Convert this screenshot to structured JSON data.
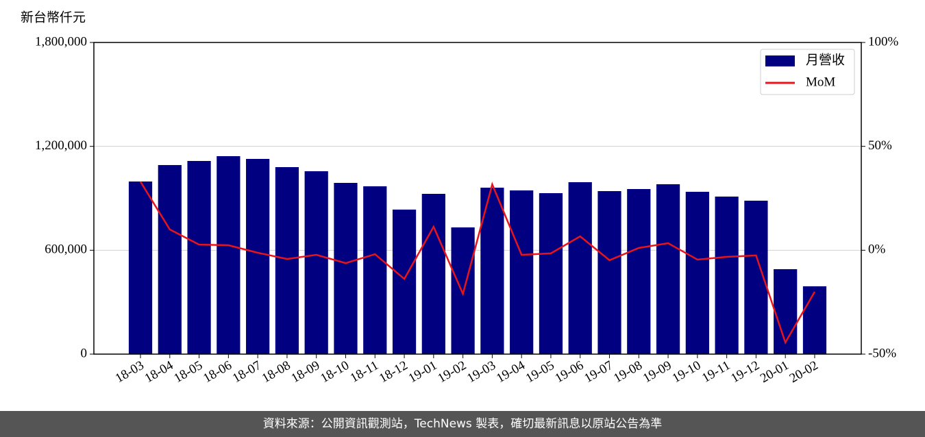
{
  "chart_data": {
    "type": "bar",
    "y_label": "新台幣仟元",
    "categories": [
      "18-03",
      "18-04",
      "18-05",
      "18-06",
      "18-07",
      "18-08",
      "18-09",
      "18-10",
      "18-11",
      "18-12",
      "19-01",
      "19-02",
      "19-03",
      "19-04",
      "19-05",
      "19-06",
      "19-07",
      "19-08",
      "19-09",
      "19-10",
      "19-11",
      "19-12",
      "20-01",
      "20-02"
    ],
    "series": [
      {
        "name": "月營收",
        "type": "bar",
        "color": "#000080",
        "values": [
          997000,
          1092000,
          1115600,
          1143300,
          1127500,
          1080000,
          1056300,
          989000,
          969200,
          834700,
          925700,
          731900,
          961300,
          945500,
          929700,
          993000,
          941500,
          953400,
          981100,
          937600,
          909900,
          886200,
          490500,
          391600
        ]
      },
      {
        "name": "MoM",
        "type": "line",
        "color": "#e8141c",
        "axis": "y2",
        "values": [
          33,
          10,
          2.7,
          2.4,
          -1.2,
          -4.2,
          -2.2,
          -6.2,
          -1.9,
          -13.8,
          11.3,
          -21,
          31.7,
          -2.2,
          -1.5,
          6.7,
          -4.8,
          1.1,
          3.4,
          -4.5,
          -3.2,
          -2.5,
          -44.4,
          -20
        ]
      }
    ],
    "ylim": [
      0,
      1800000
    ],
    "yticks": [
      {
        "value": 0,
        "label": "0"
      },
      {
        "value": 600000,
        "label": "600,000"
      },
      {
        "value": 1200000,
        "label": "1,200,000"
      },
      {
        "value": 1800000,
        "label": "1,800,000"
      }
    ],
    "y2lim": [
      -50,
      100
    ],
    "y2ticks": [
      {
        "value": -50,
        "label": "-50%"
      },
      {
        "value": 0,
        "label": "0%"
      },
      {
        "value": 50,
        "label": "50%"
      },
      {
        "value": 100,
        "label": "100%"
      }
    ],
    "grid": true,
    "legend": "upper right"
  },
  "footer": "資料來源：公開資訊觀測站，TechNews 製表，確切最新訊息以原站公告為準"
}
